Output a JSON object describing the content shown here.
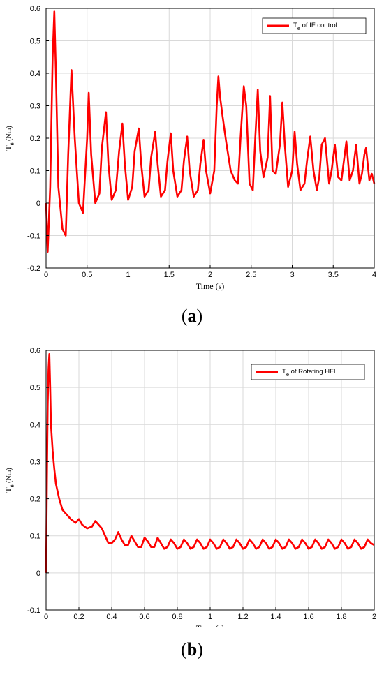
{
  "chart_data": [
    {
      "type": "line",
      "caption": "a",
      "xlabel": "Time (s)",
      "ylabel_main": "T",
      "ylabel_sub": "e",
      "ylabel_unit": " (Nm)",
      "xlim": [
        0,
        4
      ],
      "ylim": [
        -0.2,
        0.6
      ],
      "xticks": [
        0,
        0.5,
        1,
        1.5,
        2,
        2.5,
        3,
        3.5,
        4
      ],
      "yticks": [
        -0.2,
        -0.1,
        0,
        0.1,
        0.2,
        0.3,
        0.4,
        0.5,
        0.6
      ],
      "grid": true,
      "legend_position": "top-right",
      "series": [
        {
          "name_main": "T",
          "name_sub": "e",
          "name_rest": " of IF control",
          "color": "#ff0000",
          "x": [
            0,
            0.02,
            0.05,
            0.08,
            0.1,
            0.12,
            0.15,
            0.2,
            0.24,
            0.27,
            0.31,
            0.35,
            0.4,
            0.45,
            0.5,
            0.52,
            0.55,
            0.6,
            0.65,
            0.68,
            0.73,
            0.76,
            0.8,
            0.85,
            0.89,
            0.93,
            0.96,
            1.0,
            1.05,
            1.08,
            1.13,
            1.16,
            1.2,
            1.25,
            1.28,
            1.33,
            1.36,
            1.4,
            1.45,
            1.48,
            1.52,
            1.55,
            1.6,
            1.65,
            1.68,
            1.72,
            1.75,
            1.8,
            1.85,
            1.88,
            1.92,
            1.95,
            2.0,
            2.05,
            2.08,
            2.1,
            2.12,
            2.15,
            2.2,
            2.25,
            2.3,
            2.34,
            2.37,
            2.41,
            2.44,
            2.48,
            2.52,
            2.55,
            2.58,
            2.61,
            2.65,
            2.7,
            2.73,
            2.76,
            2.8,
            2.85,
            2.88,
            2.91,
            2.95,
            3.0,
            3.03,
            3.06,
            3.1,
            3.15,
            3.18,
            3.22,
            3.26,
            3.3,
            3.33,
            3.36,
            3.4,
            3.45,
            3.48,
            3.52,
            3.56,
            3.6,
            3.63,
            3.66,
            3.7,
            3.74,
            3.78,
            3.82,
            3.85,
            3.88,
            3.9,
            3.94,
            3.97,
            4.0
          ],
          "y": [
            0.0,
            -0.15,
            0.05,
            0.45,
            0.59,
            0.4,
            0.05,
            -0.08,
            -0.1,
            0.15,
            0.41,
            0.2,
            0.0,
            -0.03,
            0.2,
            0.34,
            0.15,
            0.0,
            0.03,
            0.17,
            0.28,
            0.12,
            0.01,
            0.04,
            0.16,
            0.245,
            0.12,
            0.01,
            0.05,
            0.16,
            0.23,
            0.12,
            0.02,
            0.04,
            0.14,
            0.22,
            0.12,
            0.02,
            0.04,
            0.13,
            0.215,
            0.1,
            0.02,
            0.04,
            0.13,
            0.205,
            0.1,
            0.02,
            0.04,
            0.12,
            0.195,
            0.1,
            0.03,
            0.1,
            0.3,
            0.39,
            0.33,
            0.27,
            0.18,
            0.1,
            0.07,
            0.06,
            0.2,
            0.36,
            0.3,
            0.06,
            0.04,
            0.2,
            0.35,
            0.16,
            0.08,
            0.14,
            0.33,
            0.1,
            0.09,
            0.18,
            0.31,
            0.18,
            0.05,
            0.1,
            0.22,
            0.12,
            0.04,
            0.06,
            0.13,
            0.205,
            0.1,
            0.04,
            0.08,
            0.18,
            0.2,
            0.06,
            0.1,
            0.18,
            0.08,
            0.07,
            0.13,
            0.19,
            0.07,
            0.1,
            0.18,
            0.06,
            0.09,
            0.15,
            0.17,
            0.07,
            0.09,
            0.06
          ]
        }
      ]
    },
    {
      "type": "line",
      "caption": "b",
      "xlabel": "Time (s)",
      "ylabel_main": "T",
      "ylabel_sub": "e",
      "ylabel_unit": " (Nm)",
      "xlim": [
        0,
        2
      ],
      "ylim": [
        -0.1,
        0.6
      ],
      "xticks": [
        0,
        0.2,
        0.4,
        0.6,
        0.8,
        1,
        1.2,
        1.4,
        1.6,
        1.8,
        2
      ],
      "yticks": [
        -0.1,
        0,
        0.1,
        0.2,
        0.3,
        0.4,
        0.5,
        0.6
      ],
      "grid": true,
      "legend_position": "top-right",
      "series": [
        {
          "name_main": "T",
          "name_sub": "e",
          "name_rest": " of Rotating HFI",
          "color": "#ff0000",
          "x": [
            0,
            0.005,
            0.01,
            0.015,
            0.02,
            0.025,
            0.03,
            0.04,
            0.05,
            0.06,
            0.08,
            0.1,
            0.12,
            0.15,
            0.18,
            0.2,
            0.22,
            0.25,
            0.28,
            0.3,
            0.32,
            0.34,
            0.36,
            0.38,
            0.4,
            0.42,
            0.44,
            0.46,
            0.48,
            0.5,
            0.52,
            0.54,
            0.56,
            0.58,
            0.6,
            0.62,
            0.64,
            0.66,
            0.68,
            0.7,
            0.72,
            0.74,
            0.76,
            0.78,
            0.8,
            0.82,
            0.84,
            0.86,
            0.88,
            0.9,
            0.92,
            0.94,
            0.96,
            0.98,
            1.0,
            1.02,
            1.04,
            1.06,
            1.08,
            1.1,
            1.12,
            1.14,
            1.16,
            1.18,
            1.2,
            1.22,
            1.24,
            1.26,
            1.28,
            1.3,
            1.32,
            1.34,
            1.36,
            1.38,
            1.4,
            1.42,
            1.44,
            1.46,
            1.48,
            1.5,
            1.52,
            1.54,
            1.56,
            1.58,
            1.6,
            1.62,
            1.64,
            1.66,
            1.68,
            1.7,
            1.72,
            1.74,
            1.76,
            1.78,
            1.8,
            1.82,
            1.84,
            1.86,
            1.88,
            1.9,
            1.92,
            1.94,
            1.96,
            1.98,
            2.0
          ],
          "y": [
            0.0,
            0.25,
            0.45,
            0.55,
            0.59,
            0.5,
            0.4,
            0.33,
            0.28,
            0.24,
            0.2,
            0.17,
            0.16,
            0.145,
            0.135,
            0.145,
            0.13,
            0.12,
            0.125,
            0.14,
            0.13,
            0.12,
            0.1,
            0.08,
            0.08,
            0.09,
            0.11,
            0.09,
            0.075,
            0.075,
            0.1,
            0.085,
            0.07,
            0.07,
            0.095,
            0.085,
            0.07,
            0.07,
            0.095,
            0.08,
            0.065,
            0.07,
            0.09,
            0.08,
            0.065,
            0.07,
            0.09,
            0.08,
            0.065,
            0.07,
            0.09,
            0.08,
            0.065,
            0.07,
            0.09,
            0.08,
            0.065,
            0.07,
            0.09,
            0.08,
            0.065,
            0.07,
            0.09,
            0.08,
            0.065,
            0.07,
            0.09,
            0.08,
            0.065,
            0.07,
            0.09,
            0.08,
            0.065,
            0.07,
            0.09,
            0.08,
            0.065,
            0.07,
            0.09,
            0.08,
            0.065,
            0.07,
            0.09,
            0.08,
            0.065,
            0.07,
            0.09,
            0.08,
            0.065,
            0.07,
            0.09,
            0.08,
            0.065,
            0.07,
            0.09,
            0.08,
            0.065,
            0.07,
            0.09,
            0.08,
            0.065,
            0.07,
            0.09,
            0.08,
            0.075
          ]
        }
      ]
    }
  ]
}
